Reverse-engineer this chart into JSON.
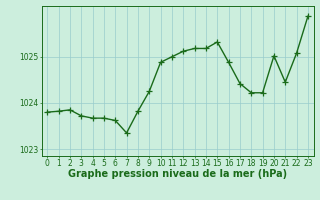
{
  "x": [
    0,
    1,
    2,
    3,
    4,
    5,
    6,
    7,
    8,
    9,
    10,
    11,
    12,
    13,
    14,
    15,
    16,
    17,
    18,
    19,
    20,
    21,
    22,
    23
  ],
  "y": [
    1023.8,
    1023.82,
    1023.85,
    1023.72,
    1023.67,
    1023.67,
    1023.62,
    1023.35,
    1023.82,
    1024.25,
    1024.88,
    1025.0,
    1025.12,
    1025.18,
    1025.18,
    1025.32,
    1024.88,
    1024.42,
    1024.22,
    1024.22,
    1025.02,
    1024.45,
    1025.08,
    1025.88
  ],
  "line_color": "#1a6b1a",
  "marker_color": "#1a6b1a",
  "background_color": "#cceedd",
  "grid_color": "#99cccc",
  "axis_color": "#1a6b1a",
  "tick_label_color": "#1a6b1a",
  "xlabel": "Graphe pression niveau de la mer (hPa)",
  "xlabel_color": "#1a6b1a",
  "ylim": [
    1022.85,
    1026.1
  ],
  "yticks": [
    1023,
    1024,
    1025
  ],
  "xticks": [
    0,
    1,
    2,
    3,
    4,
    5,
    6,
    7,
    8,
    9,
    10,
    11,
    12,
    13,
    14,
    15,
    16,
    17,
    18,
    19,
    20,
    21,
    22,
    23
  ],
  "marker_size": 4,
  "line_width": 1.0,
  "font_size_ticks": 5.5,
  "font_size_xlabel": 7.0
}
